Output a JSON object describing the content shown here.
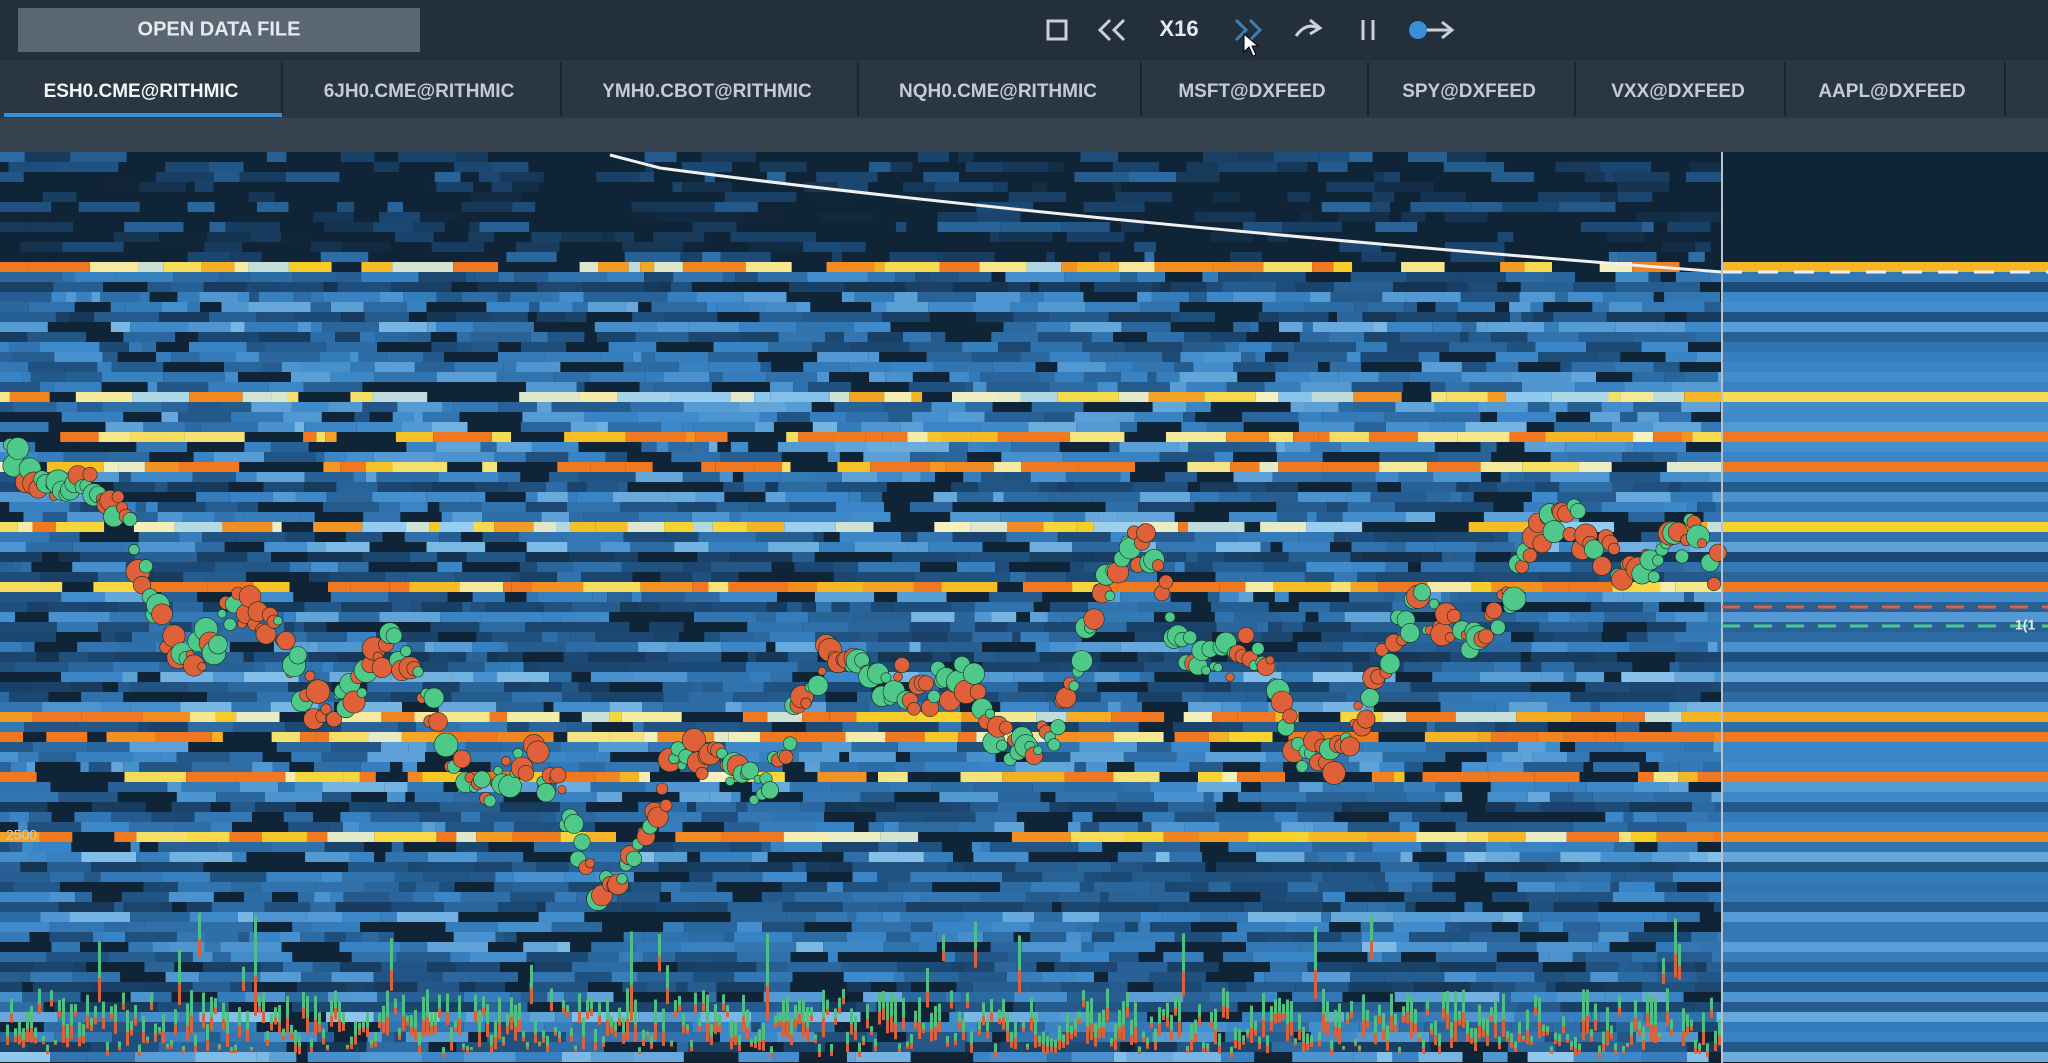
{
  "toolbar": {
    "open_button": "OPEN DATA FILE",
    "speed": "X16"
  },
  "tabs": [
    "ESH0.CME@RITHMIC",
    "6JH0.CME@RITHMIC",
    "YMH0.CBOT@RITHMIC",
    "NQH0.CME@RITHMIC",
    "MSFT@DXFEED",
    "SPY@DXFEED",
    "VXX@DXFEED",
    "AAPL@DXFEED"
  ],
  "chart": {
    "price_label": "2500",
    "order_label": "1(1"
  }
}
